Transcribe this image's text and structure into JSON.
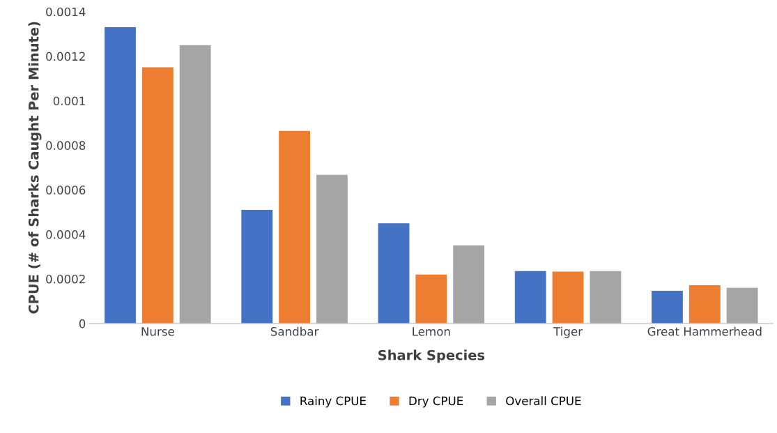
{
  "chart_data": {
    "type": "bar",
    "xlabel": "Shark Species",
    "ylabel": "CPUE (# of Sharks Caught Per Minute)",
    "categories": [
      "Nurse",
      "Sandbar",
      "Lemon",
      "Tiger",
      "Great Hammerhead"
    ],
    "series": [
      {
        "name": "Rainy CPUE",
        "color": "#4472c4",
        "values": [
          0.00133,
          0.00051,
          0.00045,
          0.000235,
          0.000147
        ]
      },
      {
        "name": "Dry CPUE",
        "color": "#ed7d31",
        "values": [
          0.00115,
          0.000865,
          0.00022,
          0.000233,
          0.000172
        ]
      },
      {
        "name": "Overall CPUE",
        "color": "#a5a5a5",
        "values": [
          0.00125,
          0.000667,
          0.00035,
          0.000235,
          0.00016
        ]
      }
    ],
    "ylim": [
      0,
      0.0014
    ],
    "yticks": [
      0,
      0.0002,
      0.0004,
      0.0006,
      0.0008,
      0.001,
      0.0012,
      0.0014
    ],
    "grid": false,
    "legend": "bottom"
  }
}
